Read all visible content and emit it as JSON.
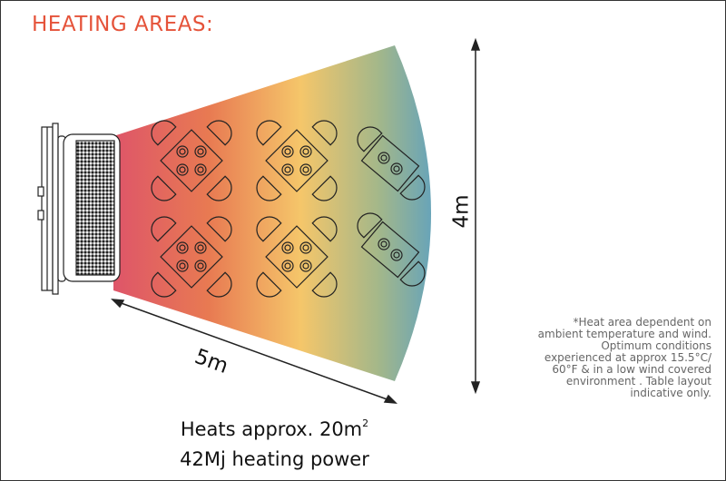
{
  "title": "HEATING AREAS:",
  "dimensions": {
    "length": "5m",
    "width": "4m"
  },
  "stats": {
    "area_prefix": "Heats approx. 20m",
    "area_sup": "2",
    "power": "42Mj heating power"
  },
  "note": "*Heat area dependent on ambient temperature and wind. Optimum conditions experienced at approx 15.5°C/ 60°F  & in a low wind covered environment . Table layout indicative only.",
  "colors": {
    "title": "#e5533a",
    "gradient": [
      "#de5569",
      "#e87a52",
      "#f5c66a",
      "#a3b78a",
      "#4f9ccc"
    ]
  }
}
